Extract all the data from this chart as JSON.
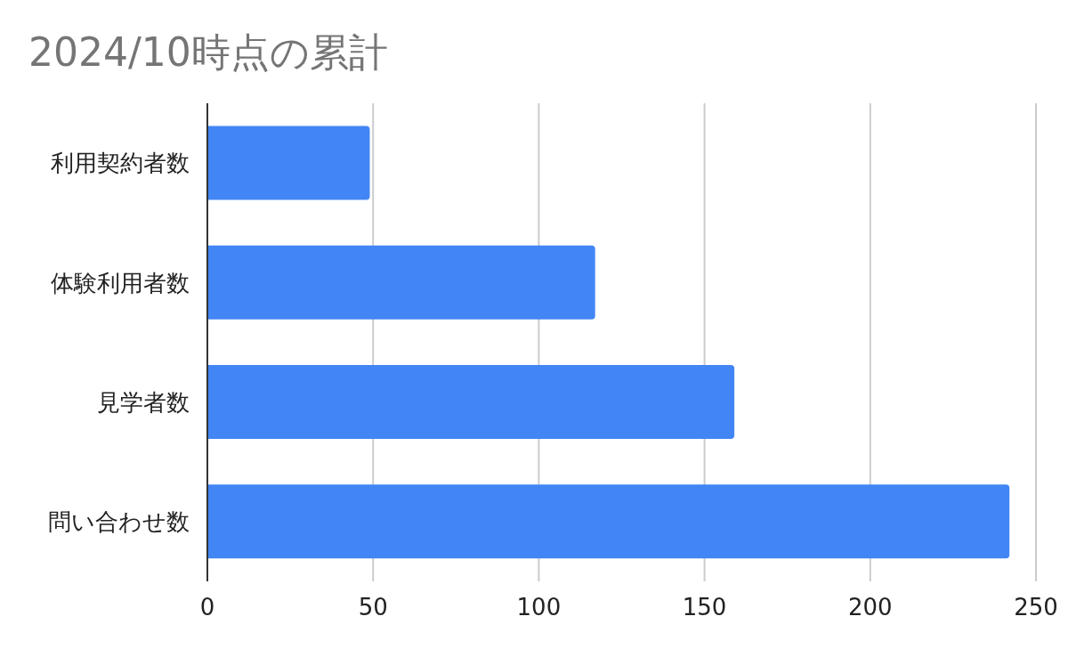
{
  "chart_data": {
    "type": "bar",
    "title": "2024/10時点の累計",
    "orientation": "horizontal",
    "categories": [
      "利用契約者数",
      "体験利用者数",
      "見学者数",
      "問い合わせ数"
    ],
    "values": [
      49,
      117,
      159,
      242
    ],
    "color": "#4285f4",
    "xlim": [
      0,
      250
    ],
    "xticks": [
      0,
      50,
      100,
      150,
      200,
      250
    ],
    "grid": "x"
  }
}
